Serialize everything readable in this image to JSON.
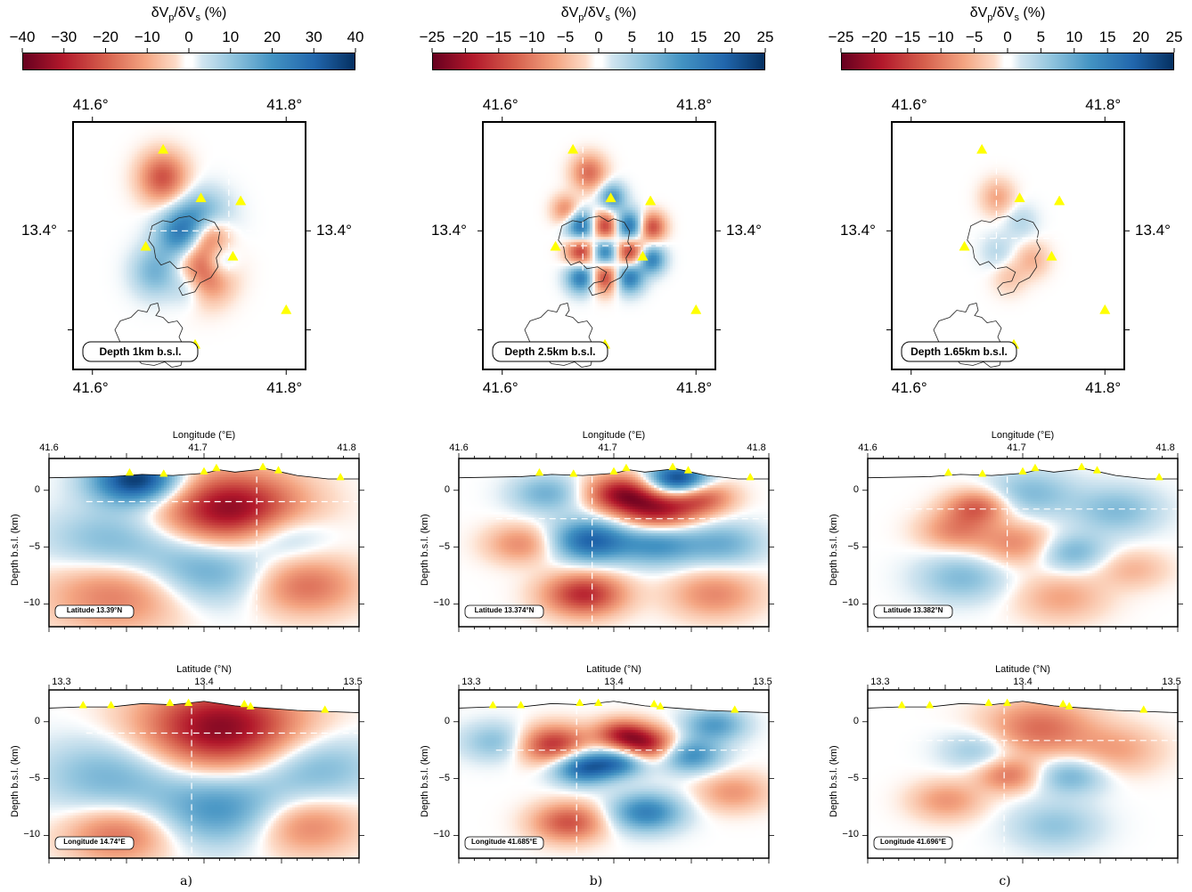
{
  "colormap": {
    "name": "red-white-blue",
    "negative_color": "#b2182b",
    "positive_color": "#2166ac",
    "zero_color": "#ffffff",
    "station_color": "#ffff00"
  },
  "chart_data": [
    {
      "panel": "a",
      "type": "heatmap",
      "colorbar": {
        "title": "δV",
        "title_sub1": "p",
        "title_mid": "/δV",
        "title_sub2": "s",
        "title_end": " (%)",
        "ticks": [
          "−40",
          "−30",
          "−20",
          "−10",
          "0",
          "10",
          "20",
          "30",
          "40"
        ],
        "range": [
          -40,
          40
        ]
      },
      "map": {
        "x_ticks": [
          "41.6°",
          "41.8°"
        ],
        "y_ticks": [
          "13.4°"
        ],
        "depth_label": "Depth 1km b.s.l.",
        "stations": [
          [
            41.673,
            13.482
          ],
          [
            41.712,
            13.433
          ],
          [
            41.753,
            13.43
          ],
          [
            41.655,
            13.384
          ],
          [
            41.745,
            13.374
          ],
          [
            41.8,
            13.32
          ],
          [
            41.706,
            13.285
          ]
        ],
        "anomalies": [
          [
            0.38,
            0.22,
            0.07,
            -0.55
          ],
          [
            0.55,
            0.4,
            0.08,
            0.55
          ],
          [
            0.55,
            0.6,
            0.08,
            -0.75
          ],
          [
            0.45,
            0.45,
            0.07,
            0.5
          ],
          [
            0.5,
            0.65,
            0.06,
            0.4
          ],
          [
            0.58,
            0.45,
            0.06,
            -0.6
          ],
          [
            0.62,
            0.56,
            0.05,
            0.4
          ],
          [
            0.35,
            0.6,
            0.07,
            0.35
          ]
        ]
      },
      "section_lon": {
        "xlabel": "Longitude (°E)",
        "x_ticks": [
          "41.6",
          "41.7",
          "41.8"
        ],
        "ylabel": "Depth b.s.l. (km)",
        "y_ticks": [
          "0",
          "−5",
          "−10"
        ],
        "ylim": [
          -12,
          2.8
        ],
        "label": "Latitude 13.39°N",
        "anomalies": [
          [
            0.28,
            0.12,
            0.1,
            1.0
          ],
          [
            0.58,
            0.3,
            0.16,
            -0.9
          ],
          [
            0.2,
            0.5,
            0.15,
            0.35
          ],
          [
            0.5,
            0.65,
            0.15,
            0.45
          ],
          [
            0.22,
            0.78,
            0.16,
            -0.45
          ],
          [
            0.82,
            0.75,
            0.12,
            -0.45
          ],
          [
            0.75,
            0.45,
            0.1,
            0.3
          ]
        ]
      },
      "section_lat": {
        "xlabel": "Latitude (°N)",
        "x_ticks": [
          "13.3",
          "13.4",
          "13.5"
        ],
        "ylabel": "Depth b.s.l. (km)",
        "y_ticks": [
          "0",
          "−5",
          "−10"
        ],
        "ylim": [
          -12,
          2.8
        ],
        "label": "Longitude 14.74°E",
        "anomalies": [
          [
            0.55,
            0.22,
            0.18,
            -0.9
          ],
          [
            0.2,
            0.5,
            0.16,
            0.35
          ],
          [
            0.55,
            0.7,
            0.15,
            0.5
          ],
          [
            0.85,
            0.45,
            0.14,
            0.35
          ],
          [
            0.22,
            0.85,
            0.12,
            -0.45
          ],
          [
            0.82,
            0.8,
            0.12,
            -0.4
          ]
        ]
      },
      "caption": "a)"
    },
    {
      "panel": "b",
      "type": "heatmap",
      "colorbar": {
        "title": "δV",
        "title_sub1": "p",
        "title_mid": "/δV",
        "title_sub2": "s",
        "title_end": " (%)",
        "ticks": [
          "−25",
          "−20",
          "−15",
          "−10",
          "−5",
          "0",
          "5",
          "10",
          "15",
          "20",
          "25"
        ],
        "range": [
          -25,
          25
        ]
      },
      "map": {
        "x_ticks": [
          "41.6°",
          "41.8°"
        ],
        "y_ticks": [
          "13.4°"
        ],
        "depth_label": "Depth 2.5km b.s.l.",
        "stations": [
          [
            41.673,
            13.482
          ],
          [
            41.712,
            13.433
          ],
          [
            41.753,
            13.43
          ],
          [
            41.655,
            13.384
          ],
          [
            41.745,
            13.374
          ],
          [
            41.8,
            13.32
          ],
          [
            41.706,
            13.285
          ]
        ],
        "anomalies": [
          [
            0.42,
            0.42,
            0.045,
            0.75
          ],
          [
            0.52,
            0.42,
            0.045,
            -0.75
          ],
          [
            0.62,
            0.42,
            0.045,
            0.75
          ],
          [
            0.42,
            0.52,
            0.045,
            -0.75
          ],
          [
            0.52,
            0.52,
            0.045,
            0.75
          ],
          [
            0.62,
            0.52,
            0.045,
            -0.75
          ],
          [
            0.42,
            0.62,
            0.045,
            0.7
          ],
          [
            0.52,
            0.62,
            0.045,
            -0.7
          ],
          [
            0.62,
            0.62,
            0.045,
            0.7
          ],
          [
            0.72,
            0.42,
            0.04,
            -0.6
          ],
          [
            0.72,
            0.55,
            0.04,
            0.6
          ],
          [
            0.45,
            0.2,
            0.05,
            -0.45
          ],
          [
            0.55,
            0.3,
            0.04,
            0.5
          ],
          [
            0.35,
            0.35,
            0.04,
            -0.35
          ]
        ]
      },
      "section_lon": {
        "xlabel": "Longitude (°E)",
        "x_ticks": [
          "41.6",
          "41.7",
          "41.8"
        ],
        "ylabel": "Depth b.s.l. (km)",
        "y_ticks": [
          "0",
          "−5",
          "−10"
        ],
        "ylim": [
          -12,
          2.8
        ],
        "label": "Latitude 13.374°N",
        "anomalies": [
          [
            0.7,
            0.12,
            0.07,
            1.0
          ],
          [
            0.52,
            0.2,
            0.08,
            -0.75
          ],
          [
            0.64,
            0.3,
            0.09,
            -0.75
          ],
          [
            0.78,
            0.22,
            0.07,
            -0.5
          ],
          [
            0.42,
            0.48,
            0.09,
            0.75
          ],
          [
            0.64,
            0.5,
            0.09,
            0.5
          ],
          [
            0.4,
            0.8,
            0.09,
            -0.7
          ],
          [
            0.2,
            0.5,
            0.08,
            -0.35
          ],
          [
            0.85,
            0.5,
            0.09,
            0.35
          ],
          [
            0.82,
            0.8,
            0.1,
            -0.35
          ],
          [
            0.28,
            0.2,
            0.08,
            0.35
          ]
        ]
      },
      "section_lat": {
        "xlabel": "Latitude (°N)",
        "x_ticks": [
          "13.3",
          "13.4",
          "13.5"
        ],
        "ylabel": "Depth b.s.l. (km)",
        "y_ticks": [
          "0",
          "−5",
          "−10"
        ],
        "ylim": [
          -12,
          2.8
        ],
        "label": "Longitude 41.685°E",
        "anomalies": [
          [
            0.3,
            0.32,
            0.08,
            -0.7
          ],
          [
            0.52,
            0.25,
            0.06,
            -0.55
          ],
          [
            0.6,
            0.32,
            0.07,
            -0.75
          ],
          [
            0.4,
            0.45,
            0.07,
            0.8
          ],
          [
            0.52,
            0.42,
            0.06,
            0.55
          ],
          [
            0.74,
            0.38,
            0.07,
            0.55
          ],
          [
            0.82,
            0.2,
            0.07,
            0.45
          ],
          [
            0.35,
            0.78,
            0.08,
            -0.55
          ],
          [
            0.6,
            0.72,
            0.08,
            0.6
          ],
          [
            0.12,
            0.3,
            0.08,
            0.3
          ],
          [
            0.88,
            0.6,
            0.08,
            -0.3
          ]
        ]
      },
      "caption": "b)"
    },
    {
      "panel": "c",
      "type": "heatmap",
      "colorbar": {
        "title": "δV",
        "title_sub1": "p",
        "title_mid": "/δV",
        "title_sub2": "s",
        "title_end": " (%)",
        "ticks": [
          "−25",
          "−20",
          "−15",
          "−10",
          "−5",
          "0",
          "5",
          "10",
          "15",
          "20",
          "25"
        ],
        "range": [
          -25,
          25
        ]
      },
      "map": {
        "x_ticks": [
          "41.6°",
          "41.8°"
        ],
        "y_ticks": [
          "13.4°"
        ],
        "depth_label": "Depth 1.65km b.s.l.",
        "stations": [
          [
            41.673,
            13.482
          ],
          [
            41.712,
            13.433
          ],
          [
            41.753,
            13.43
          ],
          [
            41.655,
            13.384
          ],
          [
            41.745,
            13.374
          ],
          [
            41.8,
            13.32
          ],
          [
            41.706,
            13.285
          ]
        ],
        "anomalies": [
          [
            0.45,
            0.3,
            0.05,
            -0.25
          ],
          [
            0.55,
            0.4,
            0.05,
            0.15
          ],
          [
            0.6,
            0.55,
            0.05,
            -0.2
          ],
          [
            0.45,
            0.52,
            0.05,
            0.15
          ],
          [
            0.5,
            0.62,
            0.05,
            -0.15
          ]
        ]
      },
      "section_lon": {
        "xlabel": "Longitude (°E)",
        "x_ticks": [
          "41.6",
          "41.7",
          "41.8"
        ],
        "ylabel": "Depth b.s.l. (km)",
        "y_ticks": [
          "0",
          "−5",
          "−10"
        ],
        "ylim": [
          -12,
          2.8
        ],
        "label": "Latitude 13.382°N",
        "anomalies": [
          [
            0.35,
            0.28,
            0.07,
            -0.5
          ],
          [
            0.28,
            0.42,
            0.08,
            -0.35
          ],
          [
            0.52,
            0.2,
            0.1,
            0.3
          ],
          [
            0.48,
            0.5,
            0.09,
            -0.35
          ],
          [
            0.65,
            0.55,
            0.08,
            0.35
          ],
          [
            0.8,
            0.3,
            0.1,
            0.3
          ],
          [
            0.3,
            0.7,
            0.1,
            0.3
          ],
          [
            0.62,
            0.82,
            0.1,
            -0.25
          ],
          [
            0.85,
            0.65,
            0.08,
            -0.2
          ]
        ]
      },
      "section_lat": {
        "xlabel": "Latitude (°N)",
        "x_ticks": [
          "13.3",
          "13.4",
          "13.5"
        ],
        "ylabel": "Depth b.s.l. (km)",
        "y_ticks": [
          "0",
          "−5",
          "−10"
        ],
        "ylim": [
          -12,
          2.8
        ],
        "label": "Longitude 41.696°E",
        "anomalies": [
          [
            0.55,
            0.22,
            0.12,
            -0.45
          ],
          [
            0.35,
            0.35,
            0.08,
            0.25
          ],
          [
            0.45,
            0.5,
            0.07,
            -0.4
          ],
          [
            0.65,
            0.5,
            0.08,
            0.35
          ],
          [
            0.25,
            0.65,
            0.08,
            -0.3
          ],
          [
            0.8,
            0.35,
            0.1,
            -0.25
          ],
          [
            0.6,
            0.8,
            0.1,
            0.25
          ]
        ]
      },
      "caption": "c)"
    }
  ]
}
